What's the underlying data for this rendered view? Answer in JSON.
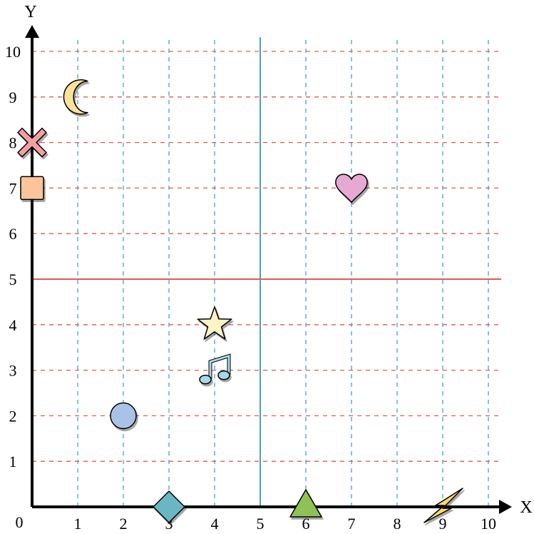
{
  "chart_data": {
    "type": "scatter",
    "title": "",
    "xlabel": "X",
    "ylabel": "Y",
    "origin_label": "0",
    "xlim": [
      0,
      10
    ],
    "ylim": [
      0,
      10
    ],
    "x_ticks": [
      "1",
      "2",
      "3",
      "4",
      "5",
      "6",
      "7",
      "8",
      "9",
      "10"
    ],
    "y_ticks": [
      "1",
      "2",
      "3",
      "4",
      "5",
      "6",
      "7",
      "8",
      "9",
      "10"
    ],
    "grid": true,
    "reference_lines": [
      {
        "axis": "x",
        "value": 5,
        "color": "#4aa3b5"
      },
      {
        "axis": "y",
        "value": 5,
        "color": "#e05a5a"
      }
    ],
    "points": [
      {
        "shape": "moon-icon",
        "x": 1,
        "y": 9,
        "color": "#fbe29a"
      },
      {
        "shape": "cross-icon",
        "x": 0,
        "y": 8,
        "color": "#f4a0a0"
      },
      {
        "shape": "square-icon",
        "x": 0,
        "y": 7,
        "color": "#fcc49a"
      },
      {
        "shape": "heart-icon",
        "x": 7,
        "y": 7,
        "color": "#e8a8d4"
      },
      {
        "shape": "star-icon",
        "x": 4,
        "y": 4,
        "color": "#fdf4c6"
      },
      {
        "shape": "music-note-icon",
        "x": 4,
        "y": 3,
        "color": "#a6d8ea"
      },
      {
        "shape": "circle-icon",
        "x": 2,
        "y": 2,
        "color": "#a9c3e8"
      },
      {
        "shape": "diamond-icon",
        "x": 3,
        "y": 0,
        "color": "#6bb6c4"
      },
      {
        "shape": "triangle-icon",
        "x": 6,
        "y": 0,
        "color": "#8fc257"
      },
      {
        "shape": "lightning-icon",
        "x": 9,
        "y": 0,
        "color": "#fcd870"
      }
    ]
  },
  "colors": {
    "axis": "#000000",
    "grid_vertical": "#4aa3b5",
    "grid_horizontal": "#e05a5a"
  }
}
